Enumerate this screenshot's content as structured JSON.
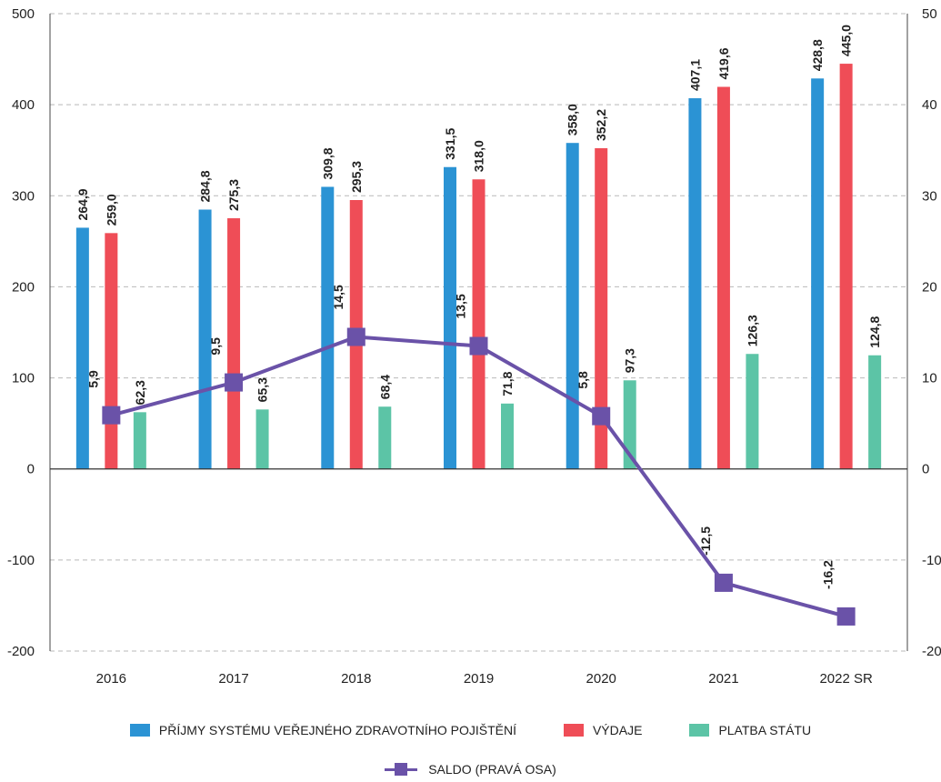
{
  "chart_data": {
    "type": "bar",
    "categories": [
      "2016",
      "2017",
      "2018",
      "2019",
      "2020",
      "2021",
      "2022 SR"
    ],
    "series": [
      {
        "name": "PŘÍJMY SYSTÉMU VEŘEJNÉHO ZDRAVOTNÍHO POJIŠTĚNÍ",
        "type": "bar",
        "axis": "left",
        "color": "#2b93d4",
        "values": [
          264.9,
          284.8,
          309.8,
          331.5,
          358.0,
          407.1,
          428.8
        ],
        "labels": [
          "264,9",
          "284,8",
          "309,8",
          "331,5",
          "358,0",
          "407,1",
          "428,8"
        ]
      },
      {
        "name": "VÝDAJE",
        "type": "bar",
        "axis": "left",
        "color": "#ef4d57",
        "values": [
          259.0,
          275.3,
          295.3,
          318.0,
          352.2,
          419.6,
          445.0
        ],
        "labels": [
          "259,0",
          "275,3",
          "295,3",
          "318,0",
          "352,2",
          "419,6",
          "445,0"
        ]
      },
      {
        "name": "PLATBA STÁTU",
        "type": "bar",
        "axis": "left",
        "color": "#5cc4a6",
        "values": [
          62.3,
          65.3,
          68.4,
          71.8,
          97.3,
          126.3,
          124.8
        ],
        "labels": [
          "62,3",
          "65,3",
          "68,4",
          "71,8",
          "97,3",
          "126,3",
          "124,8"
        ]
      },
      {
        "name": "SALDO (PRAVÁ OSA)",
        "type": "line",
        "axis": "right",
        "color": "#6a52a8",
        "values": [
          5.9,
          9.5,
          14.5,
          13.5,
          5.8,
          -12.5,
          -16.2
        ],
        "labels": [
          "5,9",
          "9,5",
          "14,5",
          "13,5",
          "5,8",
          "-12,5",
          "-16,2"
        ]
      }
    ],
    "ylim": [
      -200,
      500
    ],
    "yticks": [
      "500",
      "400",
      "300",
      "200",
      "100",
      "0",
      "-100",
      "-200"
    ],
    "y2lim": [
      -20,
      50
    ],
    "y2ticks": [
      "50",
      "40",
      "30",
      "20",
      "10",
      "0",
      "-10",
      "-20"
    ],
    "grid": true,
    "legend_position": "bottom"
  }
}
